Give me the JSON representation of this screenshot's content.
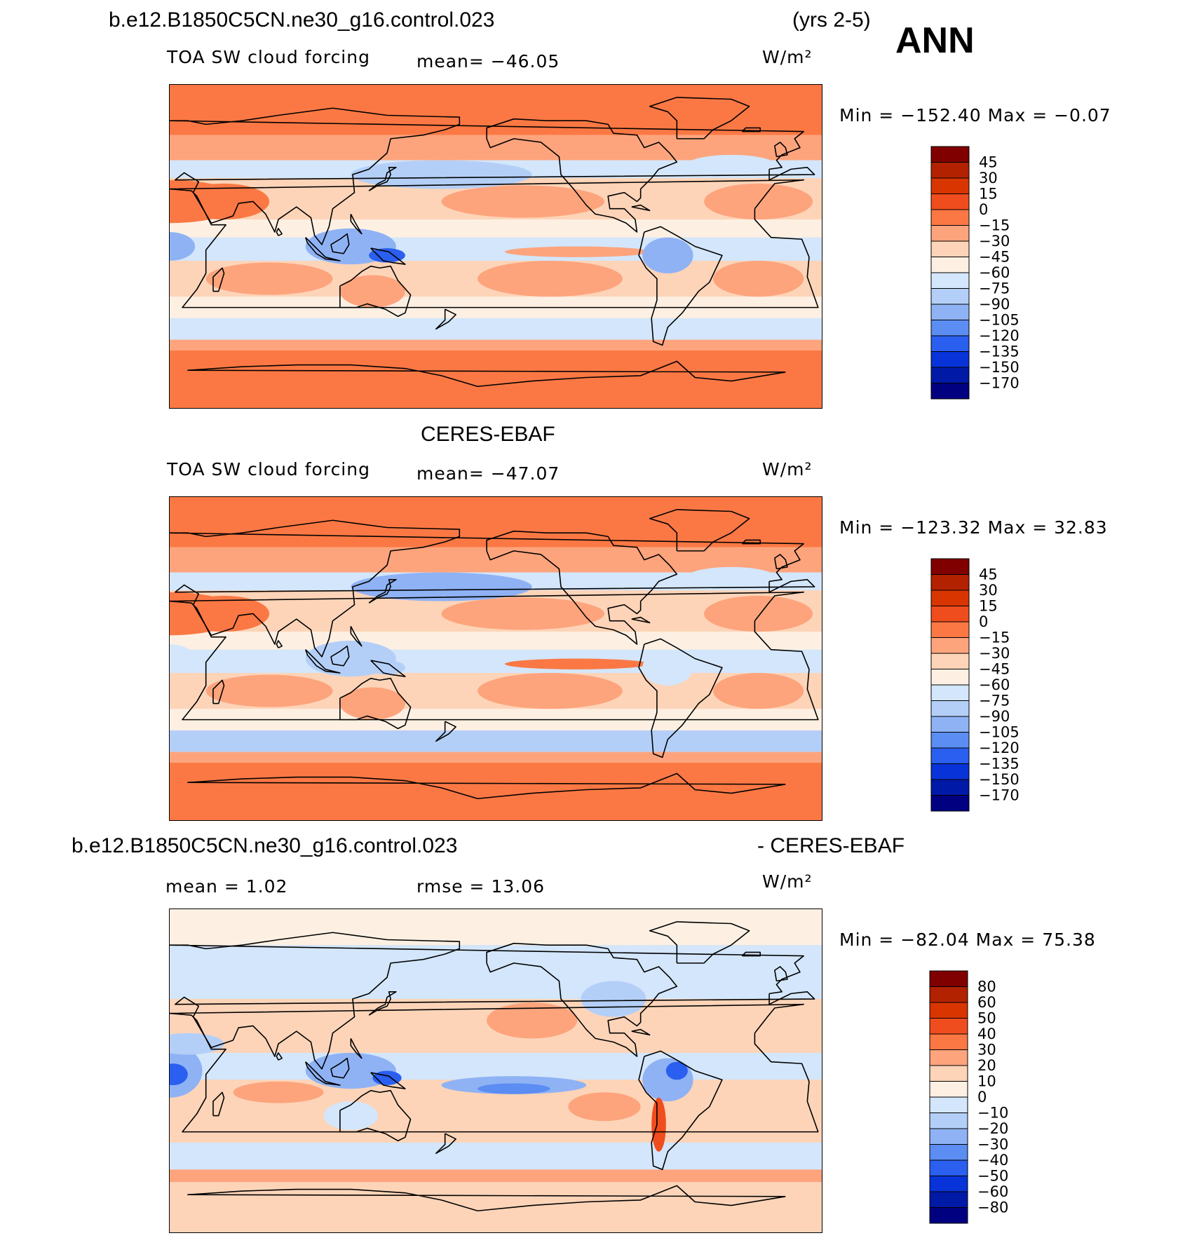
{
  "header": {
    "case_name": "b.e12.B1850C5CN.ne30_g16.control.023",
    "years": "(yrs 2-5)",
    "season": "ANN"
  },
  "panels": [
    {
      "id": "model",
      "top_title": "",
      "variable": "TOA SW cloud forcing",
      "stat_text": "mean=  −46.05",
      "units": "W/m²",
      "minmax": "Min  =  −152.40  Max  =    −0.07"
    },
    {
      "id": "obs",
      "top_title": "CERES-EBAF",
      "variable": "TOA SW cloud forcing",
      "stat_text": "mean=  −47.07",
      "units": "W/m²",
      "minmax": "Min  =  −123.32  Max  =    32.83"
    },
    {
      "id": "diff",
      "top_title": "b.e12.B1850C5CN.ne30_g16.control.023",
      "top_title_right": "- CERES-EBAF",
      "variable": "mean  =     1.02",
      "stat_text": "rmse  =    13.06",
      "units": "W/m²",
      "minmax": "Min  =  −82.04  Max  =    75.38"
    }
  ],
  "chart_data": [
    {
      "type": "heatmap",
      "title": "TOA SW cloud forcing",
      "subtitle": "b.e12.B1850C5CN.ne30_g16.control.023 (yrs 2-5) ANN",
      "mean": -46.05,
      "min": -152.4,
      "max": -0.07,
      "units": "W/m²",
      "colorbar_levels": [
        "45",
        "30",
        "15",
        "0",
        "−15",
        "−30",
        "−45",
        "−60",
        "−75",
        "−90",
        "−105",
        "−120",
        "−135",
        "−150",
        "−170"
      ],
      "colorbar_colors": [
        "#800000",
        "#b22200",
        "#d93500",
        "#f04d1e",
        "#fb7844",
        "#fda47d",
        "#fdd4b8",
        "#fdf0e3",
        "#d3e6fb",
        "#b4cff7",
        "#8fb2f5",
        "#5b8df2",
        "#2a5fef",
        "#0733d8",
        "#0019a6",
        "#000080"
      ]
    },
    {
      "type": "heatmap",
      "title": "TOA SW cloud forcing",
      "subtitle": "CERES-EBAF",
      "mean": -47.07,
      "min": -123.32,
      "max": 32.83,
      "units": "W/m²",
      "colorbar_levels": [
        "45",
        "30",
        "15",
        "0",
        "−15",
        "−30",
        "−45",
        "−60",
        "−75",
        "−90",
        "−105",
        "−120",
        "−135",
        "−150",
        "−170"
      ],
      "colorbar_colors": [
        "#800000",
        "#b22200",
        "#d93500",
        "#f04d1e",
        "#fb7844",
        "#fda47d",
        "#fdd4b8",
        "#fdf0e3",
        "#d3e6fb",
        "#b4cff7",
        "#8fb2f5",
        "#5b8df2",
        "#2a5fef",
        "#0733d8",
        "#0019a6",
        "#000080"
      ]
    },
    {
      "type": "heatmap",
      "title": "b.e12.B1850C5CN.ne30_g16.control.023 - CERES-EBAF",
      "mean": 1.02,
      "rmse": 13.06,
      "min": -82.04,
      "max": 75.38,
      "units": "W/m²",
      "colorbar_levels": [
        "80",
        "60",
        "50",
        "40",
        "30",
        "20",
        "10",
        "0",
        "−10",
        "−20",
        "−30",
        "−40",
        "−50",
        "−60",
        "−80"
      ],
      "colorbar_colors": [
        "#800000",
        "#b22200",
        "#d93500",
        "#f04d1e",
        "#fb7844",
        "#fda47d",
        "#fdd4b8",
        "#fdf0e3",
        "#d3e6fb",
        "#b4cff7",
        "#8fb2f5",
        "#5b8df2",
        "#2a5fef",
        "#0733d8",
        "#0019a6",
        "#000080"
      ]
    }
  ]
}
